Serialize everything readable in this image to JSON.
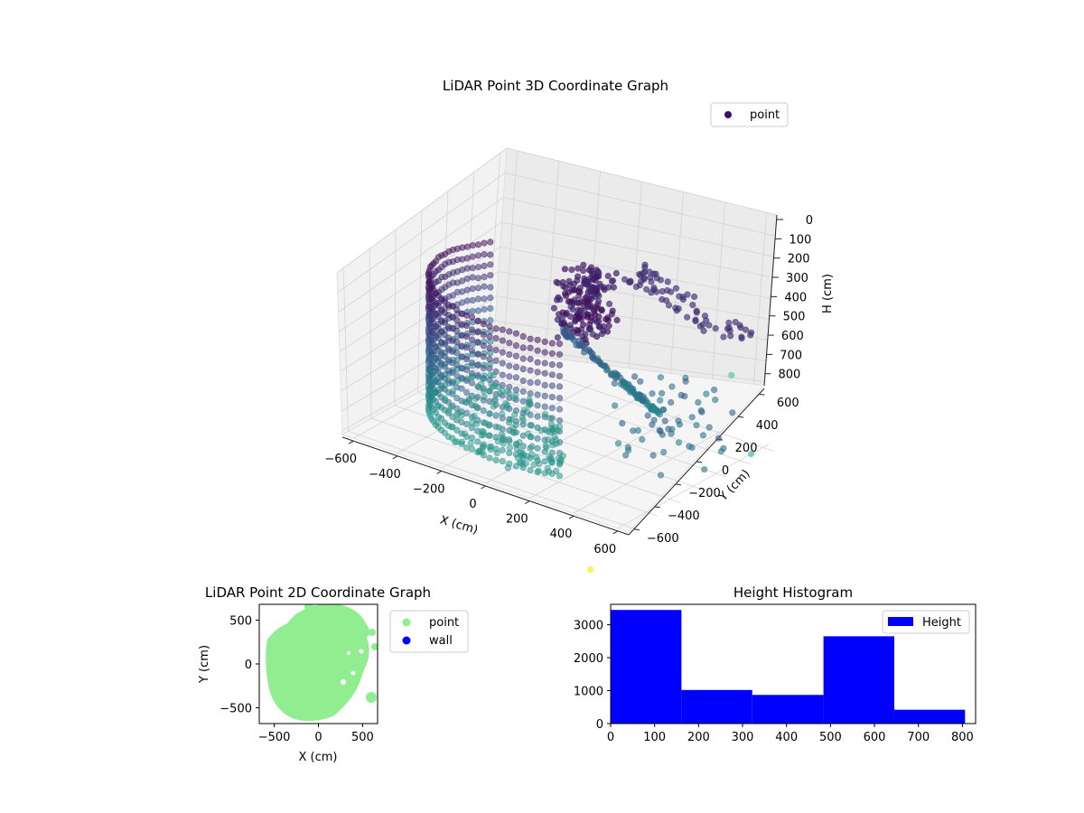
{
  "chart_data": [
    {
      "type": "scatter",
      "projection": "3d",
      "title": "LiDAR Point 3D Coordinate Graph",
      "xlabel": "X (cm)",
      "ylabel": "Y (cm)",
      "zlabel": "H (cm)",
      "xticks": [
        "−600",
        "−400",
        "−200",
        "0",
        "200",
        "400",
        "600"
      ],
      "yticks": [
        "−600",
        "−400",
        "−200",
        "0",
        "200",
        "400",
        "600"
      ],
      "zticks": [
        "0",
        "100",
        "200",
        "300",
        "400",
        "500",
        "600",
        "700",
        "800"
      ],
      "xlim": [
        -650,
        650
      ],
      "ylim": [
        -650,
        650
      ],
      "zlim": [
        0,
        820
      ],
      "z_axis_inverted": true,
      "colormap": "viridis",
      "grid": true,
      "legend": {
        "position": "top-right",
        "entries": [
          {
            "label": "point",
            "color": "#3b0f70"
          }
        ]
      },
      "series": [
        {
          "name": "point"
        }
      ],
      "clusters": [
        {
          "desc": "curved wall arc",
          "x": [
            -520,
            150
          ],
          "y": [
            -600,
            200
          ],
          "h": [
            80,
            780
          ],
          "color": "#3e6a8f"
        },
        {
          "desc": "dense central column",
          "x": [
            -120,
            60
          ],
          "y": [
            100,
            400
          ],
          "h": [
            60,
            400
          ],
          "color": "#440a68"
        },
        {
          "desc": "diagonal ridge",
          "x": [
            -50,
            300
          ],
          "y": [
            50,
            350
          ],
          "h": [
            300,
            700
          ],
          "color": "#2f6d8e"
        },
        {
          "desc": "rear ridge",
          "x": [
            50,
            600
          ],
          "y": [
            350,
            620
          ],
          "h": [
            90,
            300
          ],
          "color": "#46327e"
        },
        {
          "desc": "scattered right points",
          "x": [
            200,
            580
          ],
          "y": [
            -100,
            450
          ],
          "h": [
            400,
            800
          ],
          "color": "#3c5a8c"
        }
      ],
      "outliers": [
        {
          "x": 600,
          "y": 330,
          "h": 370,
          "color": "#5ac8a4"
        },
        {
          "x": 600,
          "y": 500,
          "h": 820,
          "color": "#4fb9b0"
        },
        {
          "x": 450,
          "y": -600,
          "h": 1100,
          "color": "#fde725"
        }
      ]
    },
    {
      "type": "scatter",
      "title": "LiDAR Point 2D Coordinate Graph",
      "xlabel": "X (cm)",
      "ylabel": "Y (cm)",
      "xticks": [
        -500,
        0,
        500
      ],
      "yticks": [
        -500,
        0,
        500
      ],
      "xlim": [
        -670,
        670
      ],
      "ylim": [
        -680,
        680
      ],
      "grid": false,
      "legend": {
        "position": "outside right",
        "entries": [
          {
            "label": "point",
            "color": "#90ee90"
          },
          {
            "label": "wall",
            "color": "#0000ff"
          }
        ]
      },
      "series": [
        {
          "name": "point",
          "color": "#90ee90",
          "shape": "filled disc, radius ~580 cm, centered near (0, 0)"
        },
        {
          "name": "wall",
          "color": "#0000ff",
          "values": []
        }
      ]
    },
    {
      "type": "bar",
      "subtype": "histogram",
      "title": "Height Histogram",
      "xlabel": "",
      "ylabel": "",
      "bin_edges": [
        0,
        161,
        322,
        484,
        645,
        806
      ],
      "values": [
        3450,
        1020,
        870,
        2650,
        420
      ],
      "xlim": [
        0,
        830
      ],
      "ylim": [
        0,
        3620
      ],
      "xticks": [
        0,
        100,
        200,
        300,
        400,
        500,
        600,
        700,
        800
      ],
      "yticks": [
        0,
        1000,
        2000,
        3000
      ],
      "color": "#0000ff",
      "grid": false,
      "legend": {
        "position": "top-right",
        "entries": [
          {
            "label": "Height",
            "color": "#0000ff"
          }
        ]
      },
      "series": [
        {
          "name": "Height",
          "values": [
            3450,
            1020,
            870,
            2650,
            420
          ]
        }
      ]
    }
  ]
}
